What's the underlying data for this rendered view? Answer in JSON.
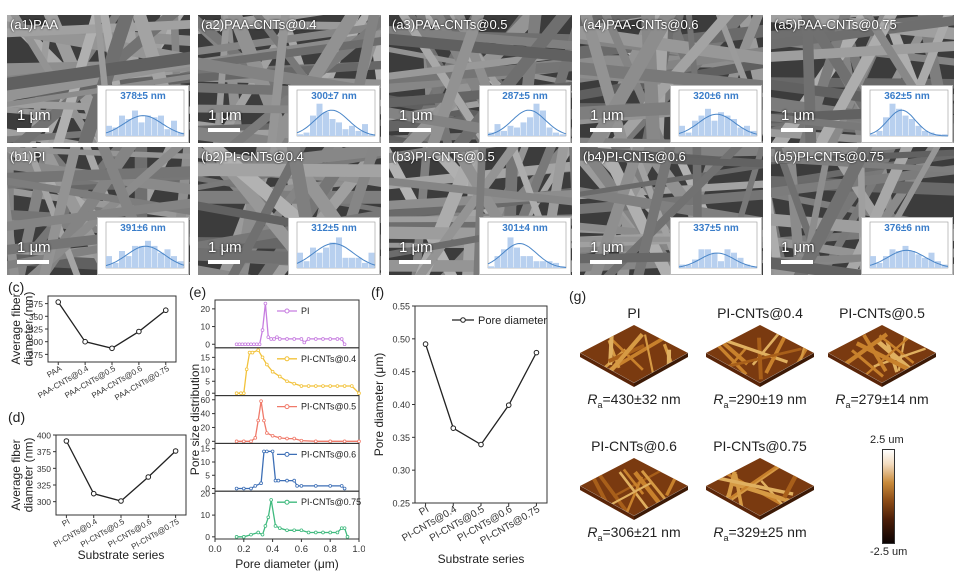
{
  "sem_row_a": [
    {
      "label": "(a1)PAA",
      "diameter": "378±5 nm",
      "scale": "1 μm",
      "bars": [
        0.3,
        0.25,
        0.6,
        0.5,
        0.75,
        0.4,
        0.6,
        0.55,
        0.6,
        0.2,
        0.45,
        0.1
      ]
    },
    {
      "label": "(a2)PAA-CNTs@0.4",
      "diameter": "300±7 nm",
      "scale": "1 μm",
      "bars": [
        0.05,
        0.1,
        0.6,
        0.95,
        0.7,
        0.5,
        0.4,
        0.2,
        0.3,
        0.15,
        0.35,
        0.05
      ]
    },
    {
      "label": "(a3)PAA-CNTs@0.5",
      "diameter": "287±5 nm",
      "scale": "1 μm",
      "bars": [
        0.1,
        0.35,
        0.15,
        0.3,
        0.25,
        0.4,
        0.55,
        0.95,
        0.75,
        0.25,
        0.1,
        0.05
      ]
    },
    {
      "label": "(a4)PAA-CNTs@0.6",
      "diameter": "320±6 nm",
      "scale": "1 μm",
      "bars": [
        0.3,
        0.1,
        0.45,
        0.6,
        0.8,
        0.45,
        0.7,
        0.6,
        0.5,
        0.25,
        0.3,
        0.15
      ]
    },
    {
      "label": "(a5)PAA-CNTs@0.75",
      "diameter": "362±5 nm",
      "scale": "1 μm",
      "bars": [
        0.05,
        0.15,
        0.55,
        0.95,
        0.8,
        0.6,
        0.5,
        0.3,
        0.15,
        0.1,
        0.05,
        0.05
      ]
    }
  ],
  "sem_row_b": [
    {
      "label": "(b1)PI",
      "diameter": "391±6 nm",
      "scale": "1 μm",
      "bars": [
        0.35,
        0.15,
        0.5,
        0.35,
        0.65,
        0.65,
        0.8,
        0.65,
        0.45,
        0.55,
        0.35,
        0.2
      ]
    },
    {
      "label": "(b2)PI-CNTs@0.4",
      "diameter": "312±5 nm",
      "scale": "1 μm",
      "bars": [
        0.45,
        0.2,
        0.6,
        0.45,
        0.6,
        0.75,
        0.9,
        0.3,
        0.3,
        0.3,
        0.15,
        0.45
      ]
    },
    {
      "label": "(b3)PI-CNTs@0.5",
      "diameter": "301±4 nm",
      "scale": "1 μm",
      "bars": [
        0.05,
        0.35,
        0.55,
        0.9,
        0.6,
        0.35,
        0.35,
        0.2,
        0.2,
        0.2,
        0.15,
        0.05
      ]
    },
    {
      "label": "(b4)PI-CNTs@0.6",
      "diameter": "337±5 nm",
      "scale": "1 μm",
      "bars": [
        0.1,
        0.1,
        0.25,
        0.55,
        0.55,
        0.45,
        0.2,
        0.55,
        0.45,
        0.3,
        0.1,
        0.05
      ]
    },
    {
      "label": "(b5)PI-CNTs@0.75",
      "diameter": "376±6 nm",
      "scale": "1 μm",
      "bars": [
        0.35,
        0.15,
        0.35,
        0.55,
        0.5,
        0.65,
        0.5,
        0.4,
        0.3,
        0.45,
        0.2,
        0.1
      ]
    }
  ],
  "panel_labels": {
    "c": "(c)",
    "d": "(d)",
    "e": "(e)",
    "f": "(f)",
    "g": "(g)"
  },
  "chart_data": [
    {
      "id": "c",
      "type": "line",
      "categories": [
        "PAA",
        "PAA-CNTs@0.4",
        "PAA-CNTs@0.5",
        "PAA-CNTs@0.6",
        "PAA-CNTs@0.75"
      ],
      "values": [
        378,
        300,
        287,
        320,
        362
      ],
      "xlabel": "Substrate series",
      "ylabel": "Average fiber diameter (nm)",
      "yticks": [
        275,
        300,
        325,
        350,
        375
      ],
      "ylim": [
        260,
        390
      ]
    },
    {
      "id": "d",
      "type": "line",
      "categories": [
        "PI",
        "PI-CNTs@0.4",
        "PI-CNTs@0.5",
        "PI-CNTs@0.6",
        "PI-CNTs@0.75"
      ],
      "values": [
        391,
        312,
        301,
        337,
        376
      ],
      "xlabel": "Substrate series",
      "ylabel": "Average fiber diameter (nm)",
      "yticks": [
        300,
        325,
        350,
        375,
        400
      ],
      "ylim": [
        280,
        400
      ]
    },
    {
      "id": "e",
      "type": "line",
      "xlabel": "Pore diameter (μm)",
      "ylabel": "Pore size distribution",
      "xticks": [
        0.0,
        0.2,
        0.4,
        0.6,
        0.8,
        1.0
      ],
      "xlim": [
        0,
        1
      ],
      "series": [
        {
          "name": "PI",
          "color": "#c77ee0",
          "yticks": [
            0,
            10,
            20
          ],
          "ylim": [
            -2,
            25
          ],
          "x": [
            0.15,
            0.17,
            0.19,
            0.21,
            0.23,
            0.25,
            0.27,
            0.29,
            0.31,
            0.33,
            0.35,
            0.37,
            0.39,
            0.41,
            0.43,
            0.45,
            0.5,
            0.55,
            0.6,
            0.62,
            0.65,
            0.7,
            0.75,
            0.8,
            0.85,
            0.88,
            0.9
          ],
          "y": [
            0,
            0,
            0,
            0,
            0,
            0,
            0,
            0,
            0,
            8,
            23,
            4,
            3,
            3,
            4,
            3,
            3,
            3,
            3,
            1,
            3,
            3,
            3,
            3,
            3,
            3,
            0
          ]
        },
        {
          "name": "PI-CNTs@0.4",
          "color": "#f2c23a",
          "yticks": [
            0,
            5,
            10,
            15
          ],
          "ylim": [
            -1,
            19
          ],
          "x": [
            0.15,
            0.18,
            0.2,
            0.22,
            0.24,
            0.26,
            0.3,
            0.33,
            0.36,
            0.4,
            0.45,
            0.5,
            0.55,
            0.6,
            0.65,
            0.7,
            0.75,
            0.8,
            0.85,
            0.9,
            0.95,
            1.0
          ],
          "y": [
            0,
            0,
            0,
            10,
            17,
            17,
            18,
            15,
            12,
            9,
            7,
            5,
            4,
            3,
            3,
            3,
            3,
            3,
            3,
            3,
            3,
            0
          ]
        },
        {
          "name": "PI-CNTs@0.5",
          "color": "#f07a6a",
          "yticks": [
            0,
            20,
            40,
            60
          ],
          "ylim": [
            -3,
            66
          ],
          "x": [
            0.15,
            0.2,
            0.25,
            0.28,
            0.3,
            0.32,
            0.34,
            0.36,
            0.4,
            0.45,
            0.5,
            0.55,
            0.6,
            0.7,
            0.8,
            0.9,
            1.0
          ],
          "y": [
            0,
            0,
            0,
            5,
            30,
            58,
            30,
            12,
            8,
            5,
            4,
            4,
            1,
            0,
            0,
            0,
            0
          ]
        },
        {
          "name": "PI-CNTs@0.6",
          "color": "#3d6fb6",
          "yticks": [
            0,
            5,
            10,
            15
          ],
          "ylim": [
            -1,
            17
          ],
          "x": [
            0.15,
            0.2,
            0.25,
            0.28,
            0.32,
            0.34,
            0.36,
            0.4,
            0.42,
            0.44,
            0.5,
            0.55,
            0.57,
            0.6,
            0.7,
            0.8,
            0.88,
            0.9
          ],
          "y": [
            0,
            0,
            0,
            1,
            2,
            14,
            14,
            14,
            3,
            3,
            3,
            3,
            1,
            1,
            1,
            1,
            1,
            0
          ]
        },
        {
          "name": "PI-CNTs@0.75",
          "color": "#3fba7e",
          "yticks": [
            0,
            10,
            20
          ],
          "ylim": [
            -1,
            21
          ],
          "x": [
            0.15,
            0.2,
            0.25,
            0.3,
            0.33,
            0.35,
            0.37,
            0.39,
            0.42,
            0.45,
            0.5,
            0.55,
            0.6,
            0.65,
            0.7,
            0.75,
            0.8,
            0.85,
            0.88,
            0.9,
            0.92
          ],
          "y": [
            0,
            0,
            1,
            2,
            1,
            5,
            9,
            17,
            5,
            4,
            3,
            3,
            3,
            2,
            2,
            2,
            2,
            2,
            4,
            4,
            0
          ]
        }
      ]
    },
    {
      "id": "f",
      "type": "line",
      "categories": [
        "PI",
        "PI-CNTs@0.4",
        "PI-CNTs@0.5",
        "PI-CNTs@0.6",
        "PI-CNTs@0.75"
      ],
      "values": [
        0.492,
        0.364,
        0.339,
        0.399,
        0.479
      ],
      "xlabel": "Substrate series",
      "ylabel": "Pore diameter (μm)",
      "legend": "Pore diameter",
      "legend_position": "top-right",
      "yticks": [
        0.25,
        0.3,
        0.35,
        0.4,
        0.45,
        0.5,
        0.55
      ],
      "ylim": [
        0.25,
        0.55
      ]
    }
  ],
  "afm": [
    {
      "title": "PI",
      "ra_value": "=430±32 nm"
    },
    {
      "title": "PI-CNTs@0.4",
      "ra_value": "=290±19 nm"
    },
    {
      "title": "PI-CNTs@0.5",
      "ra_value": "=279±14 nm"
    },
    {
      "title": "PI-CNTs@0.6",
      "ra_value": "=306±21 nm"
    },
    {
      "title": "PI-CNTs@0.75",
      "ra_value": "=329±25 nm"
    }
  ],
  "ra_symbol": "R",
  "ra_sub": "a",
  "colorbar": {
    "max": "2.5 um",
    "min": "-2.5 um"
  }
}
